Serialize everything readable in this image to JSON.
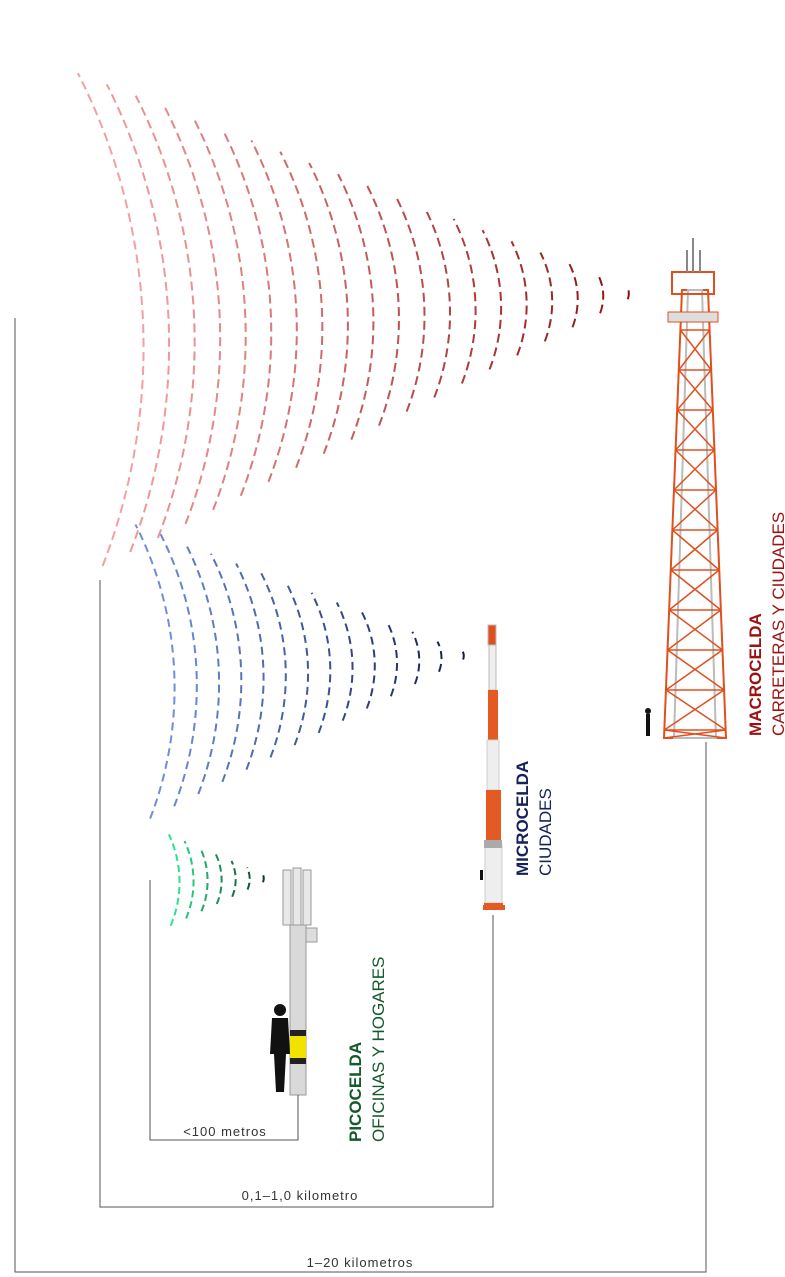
{
  "cells": [
    {
      "title": "MACROCELDA",
      "subtitle": "CARRETERAS Y CIUDADES"
    },
    {
      "title": "MICROCELDA",
      "subtitle": "CIUDADES"
    },
    {
      "title": "PICOCELDA",
      "subtitle": "OFICINAS Y HOGARES"
    }
  ],
  "dimensions": [
    "<100  metros",
    "0,1–1,0  kilometro",
    "1–20  kilometros"
  ]
}
